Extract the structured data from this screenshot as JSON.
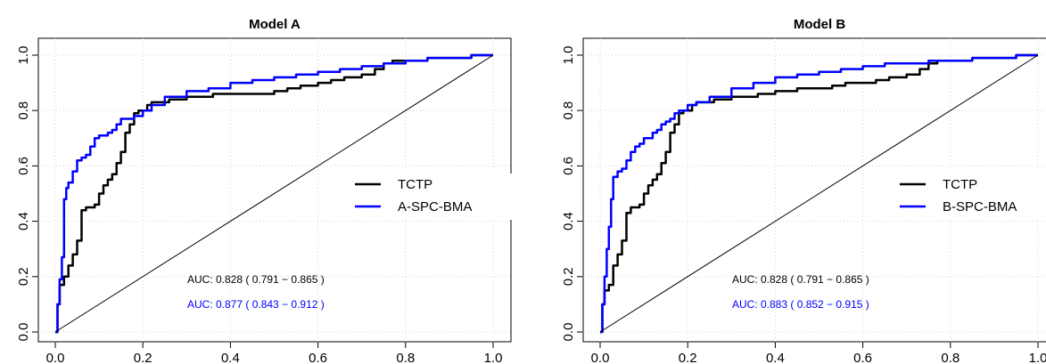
{
  "chart_data": [
    {
      "type": "line",
      "title": "Model A",
      "xlabel": "",
      "ylabel": "",
      "xlim": [
        0,
        1
      ],
      "ylim": [
        0,
        1
      ],
      "x_ticks": [
        "0.0",
        "0.2",
        "0.4",
        "0.6",
        "0.8",
        "1.0"
      ],
      "y_ticks": [
        "0.0",
        "0.2",
        "0.4",
        "0.6",
        "0.8",
        "1.0"
      ],
      "grid": true,
      "legend_position": "right",
      "series": [
        {
          "name": "TCTP",
          "color": "#000000",
          "x": [
            0.0,
            0.005,
            0.01,
            0.02,
            0.03,
            0.04,
            0.05,
            0.06,
            0.07,
            0.08,
            0.09,
            0.1,
            0.11,
            0.12,
            0.13,
            0.14,
            0.15,
            0.16,
            0.17,
            0.18,
            0.19,
            0.2,
            0.21,
            0.22,
            0.24,
            0.26,
            0.28,
            0.3,
            0.33,
            0.36,
            0.4,
            0.45,
            0.5,
            0.53,
            0.56,
            0.6,
            0.63,
            0.66,
            0.7,
            0.73,
            0.75,
            0.77,
            0.8,
            0.85,
            0.9,
            0.95,
            1.0
          ],
          "y": [
            0.0,
            0.1,
            0.17,
            0.2,
            0.24,
            0.28,
            0.33,
            0.44,
            0.45,
            0.45,
            0.46,
            0.5,
            0.53,
            0.55,
            0.57,
            0.61,
            0.65,
            0.72,
            0.75,
            0.79,
            0.8,
            0.8,
            0.82,
            0.83,
            0.83,
            0.84,
            0.84,
            0.85,
            0.85,
            0.86,
            0.86,
            0.86,
            0.87,
            0.88,
            0.89,
            0.9,
            0.91,
            0.92,
            0.93,
            0.95,
            0.97,
            0.98,
            0.98,
            0.99,
            0.99,
            1.0,
            1.0
          ]
        },
        {
          "name": "A-SPC-BMA",
          "color": "#0000ff",
          "x": [
            0.0,
            0.005,
            0.01,
            0.015,
            0.02,
            0.025,
            0.03,
            0.04,
            0.05,
            0.06,
            0.07,
            0.08,
            0.09,
            0.1,
            0.12,
            0.13,
            0.14,
            0.15,
            0.16,
            0.17,
            0.18,
            0.2,
            0.22,
            0.25,
            0.3,
            0.35,
            0.4,
            0.45,
            0.5,
            0.55,
            0.6,
            0.65,
            0.7,
            0.75,
            0.8,
            0.85,
            0.9,
            0.95,
            1.0
          ],
          "y": [
            0.0,
            0.1,
            0.19,
            0.27,
            0.48,
            0.52,
            0.54,
            0.58,
            0.62,
            0.63,
            0.64,
            0.67,
            0.7,
            0.71,
            0.72,
            0.73,
            0.75,
            0.77,
            0.77,
            0.77,
            0.78,
            0.8,
            0.82,
            0.85,
            0.87,
            0.88,
            0.9,
            0.91,
            0.92,
            0.93,
            0.94,
            0.95,
            0.96,
            0.97,
            0.98,
            0.99,
            0.99,
            1.0,
            1.0
          ]
        },
        {
          "name": "",
          "color": "#000000",
          "x": [
            0,
            1
          ],
          "y": [
            0,
            1
          ]
        }
      ],
      "annotations": [
        {
          "text": "AUC: 0.828  ( 0.791 − 0.865 )",
          "color": "#000000"
        },
        {
          "text": "AUC: 0.877  ( 0.843 − 0.912 )",
          "color": "#0000ff"
        }
      ]
    },
    {
      "type": "line",
      "title": "Model B",
      "xlabel": "",
      "ylabel": "",
      "xlim": [
        0,
        1
      ],
      "ylim": [
        0,
        1
      ],
      "x_ticks": [
        "0.0",
        "0.2",
        "0.4",
        "0.6",
        "0.8",
        "1.0"
      ],
      "y_ticks": [
        "0.0",
        "0.2",
        "0.4",
        "0.6",
        "0.8",
        "1.0"
      ],
      "grid": true,
      "legend_position": "right",
      "series": [
        {
          "name": "TCTP",
          "color": "#000000",
          "x": [
            0.0,
            0.005,
            0.01,
            0.02,
            0.03,
            0.04,
            0.05,
            0.06,
            0.07,
            0.08,
            0.09,
            0.1,
            0.11,
            0.12,
            0.13,
            0.14,
            0.15,
            0.16,
            0.17,
            0.18,
            0.19,
            0.2,
            0.21,
            0.22,
            0.24,
            0.26,
            0.28,
            0.3,
            0.33,
            0.36,
            0.4,
            0.45,
            0.5,
            0.53,
            0.56,
            0.6,
            0.63,
            0.66,
            0.7,
            0.73,
            0.75,
            0.77,
            0.8,
            0.85,
            0.9,
            0.95,
            1.0
          ],
          "y": [
            0.0,
            0.1,
            0.15,
            0.17,
            0.24,
            0.28,
            0.33,
            0.43,
            0.45,
            0.45,
            0.46,
            0.5,
            0.53,
            0.55,
            0.57,
            0.61,
            0.65,
            0.72,
            0.75,
            0.79,
            0.8,
            0.8,
            0.82,
            0.83,
            0.83,
            0.84,
            0.84,
            0.85,
            0.85,
            0.86,
            0.87,
            0.88,
            0.88,
            0.89,
            0.9,
            0.9,
            0.91,
            0.92,
            0.93,
            0.95,
            0.97,
            0.98,
            0.98,
            0.99,
            0.99,
            1.0,
            1.0
          ]
        },
        {
          "name": "B-SPC-BMA",
          "color": "#0000ff",
          "x": [
            0.0,
            0.005,
            0.01,
            0.015,
            0.02,
            0.025,
            0.03,
            0.04,
            0.05,
            0.06,
            0.07,
            0.08,
            0.09,
            0.1,
            0.12,
            0.13,
            0.14,
            0.15,
            0.16,
            0.17,
            0.18,
            0.2,
            0.22,
            0.25,
            0.3,
            0.35,
            0.4,
            0.45,
            0.5,
            0.55,
            0.6,
            0.65,
            0.7,
            0.75,
            0.8,
            0.85,
            0.9,
            0.95,
            1.0
          ],
          "y": [
            0.0,
            0.1,
            0.2,
            0.3,
            0.38,
            0.48,
            0.56,
            0.58,
            0.59,
            0.62,
            0.65,
            0.67,
            0.68,
            0.7,
            0.72,
            0.73,
            0.75,
            0.76,
            0.77,
            0.79,
            0.8,
            0.82,
            0.83,
            0.85,
            0.88,
            0.9,
            0.92,
            0.93,
            0.94,
            0.95,
            0.96,
            0.97,
            0.97,
            0.98,
            0.98,
            0.99,
            0.99,
            1.0,
            1.0
          ]
        },
        {
          "name": "",
          "color": "#000000",
          "x": [
            0,
            1
          ],
          "y": [
            0,
            1
          ]
        }
      ],
      "annotations": [
        {
          "text": "AUC: 0.828  ( 0.791 − 0.865 )",
          "color": "#000000"
        },
        {
          "text": "AUC: 0.883  ( 0.852 − 0.915 )",
          "color": "#0000ff"
        }
      ]
    }
  ]
}
